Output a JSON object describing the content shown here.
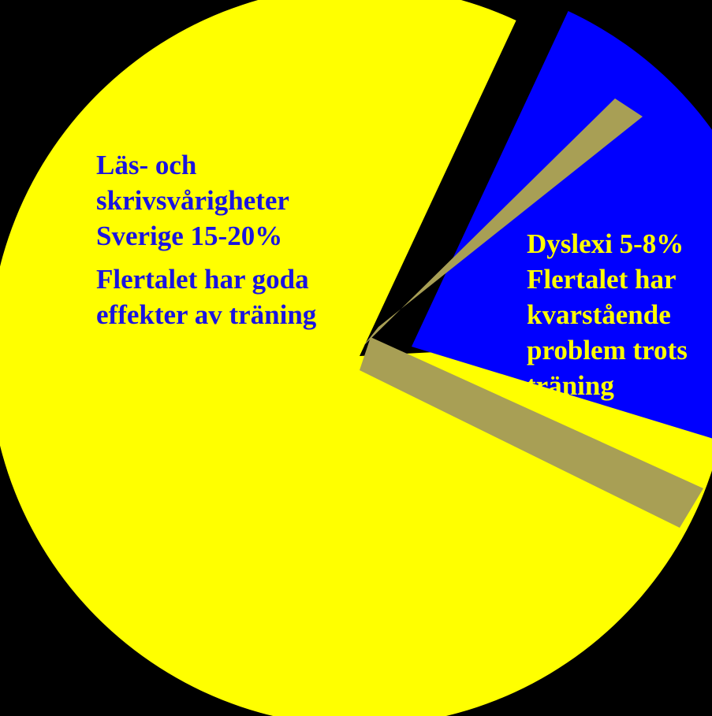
{
  "chart_data": {
    "type": "pie",
    "slices": [
      {
        "name": "Läs- och skrivsvårigheter",
        "lines": [
          "Läs- och",
          "skrivsvårigheter",
          "Sverige 15-20%"
        ],
        "note_lines": [
          "Flertalet har goda",
          "effekter av träning"
        ],
        "color": "#ffff00",
        "text_color": "#1a14e0",
        "start_deg": 65,
        "sweep_deg": 298
      },
      {
        "name": "Dyslexi",
        "lines": [
          "Dyslexi 5-8%",
          "Flertalet har",
          "kvarstående",
          "problem trots",
          "träning"
        ],
        "color": "#0000ff",
        "text_color": "#ffff00",
        "start_deg": 3,
        "sweep_deg": 62
      }
    ],
    "separator_color": "#a89f55",
    "background": "#000000"
  }
}
